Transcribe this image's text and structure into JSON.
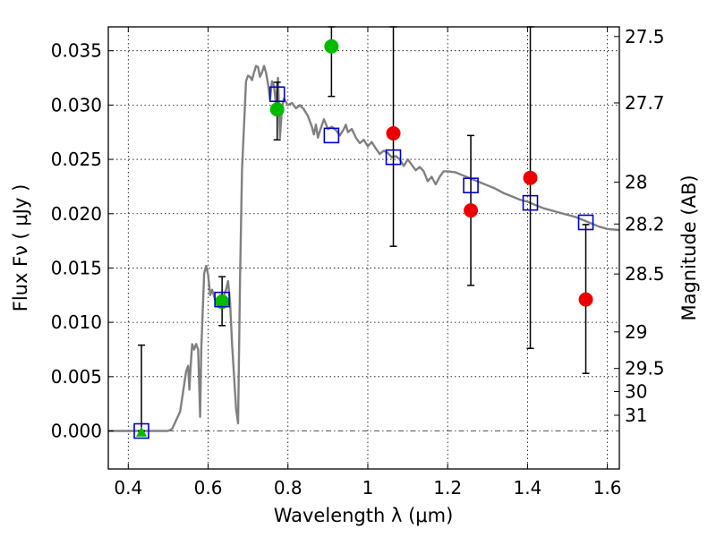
{
  "chart_data": {
    "type": "scatter",
    "xlabel": "Wavelength  λ (μm)",
    "ylabel": "Flux  Fν  ( μJy )",
    "y2label": "Magnitude (AB)",
    "xlim": [
      0.35,
      1.63
    ],
    "ylim": [
      -0.0035,
      0.0372
    ],
    "grid": true,
    "x_ticks": [
      {
        "v": 0.4,
        "label": "0.4"
      },
      {
        "v": 0.6,
        "label": "0.6"
      },
      {
        "v": 0.8,
        "label": "0.8"
      },
      {
        "v": 1.0,
        "label": "1"
      },
      {
        "v": 1.2,
        "label": "1.2"
      },
      {
        "v": 1.4,
        "label": "1.4"
      },
      {
        "v": 1.6,
        "label": "1.6"
      }
    ],
    "y_ticks": [
      {
        "v": 0.0,
        "label": "0.000"
      },
      {
        "v": 0.005,
        "label": "0.005"
      },
      {
        "v": 0.01,
        "label": "0.010"
      },
      {
        "v": 0.015,
        "label": "0.015"
      },
      {
        "v": 0.02,
        "label": "0.020"
      },
      {
        "v": 0.025,
        "label": "0.025"
      },
      {
        "v": 0.03,
        "label": "0.030"
      },
      {
        "v": 0.035,
        "label": "0.035"
      }
    ],
    "y2_ticks": [
      {
        "flux": 0.03631,
        "label": "27.5"
      },
      {
        "flux": 0.0302,
        "label": "27.7"
      },
      {
        "flux": 0.02291,
        "label": "28"
      },
      {
        "flux": 0.01905,
        "label": "28.2"
      },
      {
        "flux": 0.01445,
        "label": "28.5"
      },
      {
        "flux": 0.00912,
        "label": "29"
      },
      {
        "flux": 0.005754,
        "label": "29.5"
      },
      {
        "flux": 0.003631,
        "label": "30"
      },
      {
        "flux": 0.001445,
        "label": "31"
      }
    ],
    "model_curve": {
      "color": "#808080",
      "points": [
        [
          0.35,
          0.0
        ],
        [
          0.5,
          0.0
        ],
        [
          0.51,
          0.0002
        ],
        [
          0.53,
          0.0018
        ],
        [
          0.545,
          0.0055
        ],
        [
          0.55,
          0.006
        ],
        [
          0.553,
          0.0038
        ],
        [
          0.556,
          0.0058
        ],
        [
          0.56,
          0.008
        ],
        [
          0.565,
          0.0075
        ],
        [
          0.57,
          0.008
        ],
        [
          0.575,
          0.0075
        ],
        [
          0.58,
          0.0013
        ],
        [
          0.583,
          0.0075
        ],
        [
          0.59,
          0.0145
        ],
        [
          0.595,
          0.0152
        ],
        [
          0.6,
          0.0144
        ],
        [
          0.605,
          0.0125
        ],
        [
          0.61,
          0.013
        ],
        [
          0.62,
          0.0118
        ],
        [
          0.63,
          0.0125
        ],
        [
          0.64,
          0.0125
        ],
        [
          0.645,
          0.013
        ],
        [
          0.65,
          0.0138
        ],
        [
          0.655,
          0.0118
        ],
        [
          0.66,
          0.008
        ],
        [
          0.67,
          0.002
        ],
        [
          0.675,
          0.0007
        ],
        [
          0.68,
          0.014
        ],
        [
          0.685,
          0.024
        ],
        [
          0.695,
          0.0322
        ],
        [
          0.7,
          0.0327
        ],
        [
          0.705,
          0.0326
        ],
        [
          0.71,
          0.0323
        ],
        [
          0.715,
          0.033
        ],
        [
          0.72,
          0.0336
        ],
        [
          0.725,
          0.0335
        ],
        [
          0.73,
          0.0326
        ],
        [
          0.735,
          0.033
        ],
        [
          0.74,
          0.0336
        ],
        [
          0.745,
          0.033
        ],
        [
          0.75,
          0.032
        ],
        [
          0.755,
          0.0305
        ],
        [
          0.76,
          0.0322
        ],
        [
          0.765,
          0.0318
        ],
        [
          0.77,
          0.03
        ],
        [
          0.775,
          0.0325
        ],
        [
          0.78,
          0.027
        ],
        [
          0.785,
          0.0298
        ],
        [
          0.79,
          0.0306
        ],
        [
          0.8,
          0.03
        ],
        [
          0.81,
          0.0302
        ],
        [
          0.82,
          0.0297
        ],
        [
          0.83,
          0.03
        ],
        [
          0.84,
          0.0296
        ],
        [
          0.85,
          0.029
        ],
        [
          0.86,
          0.028
        ],
        [
          0.865,
          0.0273
        ],
        [
          0.87,
          0.0282
        ],
        [
          0.875,
          0.027
        ],
        [
          0.88,
          0.0276
        ],
        [
          0.89,
          0.0287
        ],
        [
          0.9,
          0.0278
        ],
        [
          0.91,
          0.028
        ],
        [
          0.92,
          0.0277
        ],
        [
          0.93,
          0.0272
        ],
        [
          0.94,
          0.0278
        ],
        [
          0.945,
          0.0282
        ],
        [
          0.95,
          0.0275
        ],
        [
          0.96,
          0.0278
        ],
        [
          0.97,
          0.027
        ],
        [
          0.98,
          0.0265
        ],
        [
          0.99,
          0.0268
        ],
        [
          1.0,
          0.0262
        ],
        [
          1.01,
          0.0266
        ],
        [
          1.02,
          0.026
        ],
        [
          1.03,
          0.0255
        ],
        [
          1.04,
          0.0258
        ],
        [
          1.05,
          0.0256
        ],
        [
          1.06,
          0.0252
        ],
        [
          1.07,
          0.0253
        ],
        [
          1.08,
          0.025
        ],
        [
          1.09,
          0.0244
        ],
        [
          1.1,
          0.025
        ],
        [
          1.11,
          0.0245
        ],
        [
          1.12,
          0.024
        ],
        [
          1.13,
          0.0243
        ],
        [
          1.14,
          0.0239
        ],
        [
          1.15,
          0.023
        ],
        [
          1.16,
          0.0234
        ],
        [
          1.17,
          0.0227
        ],
        [
          1.18,
          0.0234
        ],
        [
          1.19,
          0.0239
        ],
        [
          1.2,
          0.0239
        ],
        [
          1.22,
          0.0238
        ],
        [
          1.24,
          0.0235
        ],
        [
          1.26,
          0.0232
        ],
        [
          1.28,
          0.0229
        ],
        [
          1.3,
          0.0226
        ],
        [
          1.32,
          0.0223
        ],
        [
          1.34,
          0.0219
        ],
        [
          1.36,
          0.0216
        ],
        [
          1.38,
          0.0213
        ],
        [
          1.4,
          0.0211
        ],
        [
          1.42,
          0.0208
        ],
        [
          1.44,
          0.0205
        ],
        [
          1.46,
          0.0203
        ],
        [
          1.48,
          0.0201
        ],
        [
          1.5,
          0.0199
        ],
        [
          1.52,
          0.0197
        ],
        [
          1.54,
          0.0194
        ],
        [
          1.56,
          0.0191
        ],
        [
          1.58,
          0.0188
        ],
        [
          1.6,
          0.0186
        ],
        [
          1.63,
          0.0185
        ]
      ]
    },
    "series": [
      {
        "marker": "square-open",
        "color": "#0000cc",
        "points": [
          [
            0.433,
            0.0
          ],
          [
            0.635,
            0.0121
          ],
          [
            0.773,
            0.031
          ],
          [
            0.909,
            0.0272
          ],
          [
            1.064,
            0.0252
          ],
          [
            1.258,
            0.0226
          ],
          [
            1.407,
            0.021
          ],
          [
            1.546,
            0.0192
          ]
        ]
      },
      {
        "marker": "circle",
        "color": "#00bb00",
        "points": [
          [
            0.635,
            0.0119
          ],
          [
            0.773,
            0.0296
          ],
          [
            0.909,
            0.0354
          ]
        ]
      },
      {
        "marker": "circle",
        "color": "#ee0000",
        "points": [
          [
            1.064,
            0.0274
          ],
          [
            1.258,
            0.0203
          ],
          [
            1.407,
            0.0233
          ],
          [
            1.546,
            0.0121
          ]
        ]
      },
      {
        "marker": "triangle",
        "color": "#00bb00",
        "points": [
          [
            0.433,
            -0.0001
          ]
        ]
      }
    ],
    "error_bars": [
      {
        "x": 0.433,
        "lo": 0.0,
        "hi": 0.0079
      },
      {
        "x": 0.635,
        "lo": 0.0097,
        "hi": 0.0142
      },
      {
        "x": 0.773,
        "lo": 0.0268,
        "hi": 0.0321
      },
      {
        "x": 0.909,
        "lo": 0.0308,
        "hi": 0.0372
      },
      {
        "x": 1.064,
        "lo": 0.017,
        "hi": 0.0372
      },
      {
        "x": 1.258,
        "lo": 0.0134,
        "hi": 0.0272
      },
      {
        "x": 1.407,
        "lo": 0.0076,
        "hi": 0.0372
      },
      {
        "x": 1.546,
        "lo": 0.0053,
        "hi": 0.019
      }
    ]
  }
}
